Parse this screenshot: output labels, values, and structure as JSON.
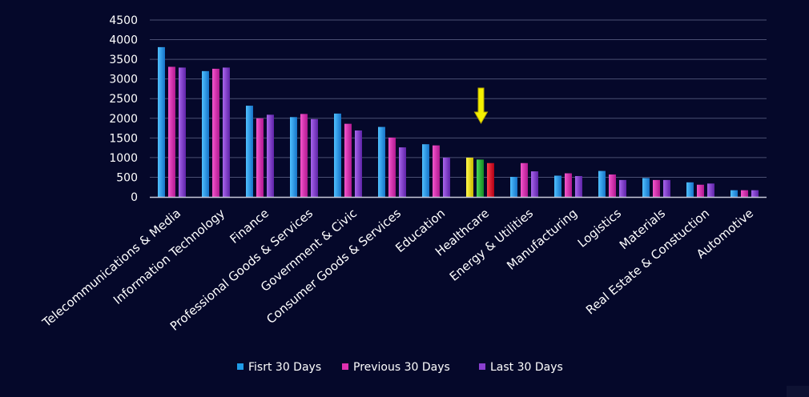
{
  "chart_data": {
    "type": "bar",
    "title": "",
    "xlabel": "",
    "ylabel": "",
    "ylim": [
      0,
      4500
    ],
    "yticks": [
      0,
      500,
      1000,
      1500,
      2000,
      2500,
      3000,
      3500,
      4000,
      4500
    ],
    "grid": true,
    "legend_position": "bottom",
    "categories": [
      "Telecommunications & Media",
      "Information Technology",
      "Finance",
      "Professional Goods & Services",
      "Government & Civic",
      "Consumer Goods &  Services",
      "Education",
      "Healthcare",
      "Energy & Utilities",
      "Manufacturing",
      "Logistics",
      "Materials",
      "Real Estate & Constuction",
      "Automotive"
    ],
    "series": [
      {
        "name": "Fisrt 30 Days",
        "color": "#1f9be8",
        "values": [
          3810,
          3200,
          2320,
          2030,
          2120,
          1780,
          1340,
          1000,
          510,
          540,
          660,
          480,
          370,
          170
        ]
      },
      {
        "name": "Previous 30 Days",
        "color": "#e030b0",
        "values": [
          3310,
          3260,
          2000,
          2110,
          1860,
          1510,
          1310,
          950,
          860,
          600,
          570,
          430,
          310,
          170
        ]
      },
      {
        "name": "Last 30 Days",
        "color": "#8a3fd0",
        "values": [
          3290,
          3290,
          2090,
          1980,
          1690,
          1260,
          1000,
          860,
          650,
          530,
          430,
          430,
          340,
          170
        ]
      }
    ],
    "highlight": {
      "category": "Healthcare",
      "bar_colors": [
        "#f2e600",
        "#2bbf3a",
        "#e8102a"
      ],
      "arrow_color": "#f4f000"
    }
  },
  "legend": {
    "items": [
      {
        "label": "Fisrt 30 Days",
        "color": "#1f9be8"
      },
      {
        "label": "Previous 30 Days",
        "color": "#e030b0"
      },
      {
        "label": "Last 30 Days",
        "color": "#8a3fd0"
      }
    ]
  }
}
